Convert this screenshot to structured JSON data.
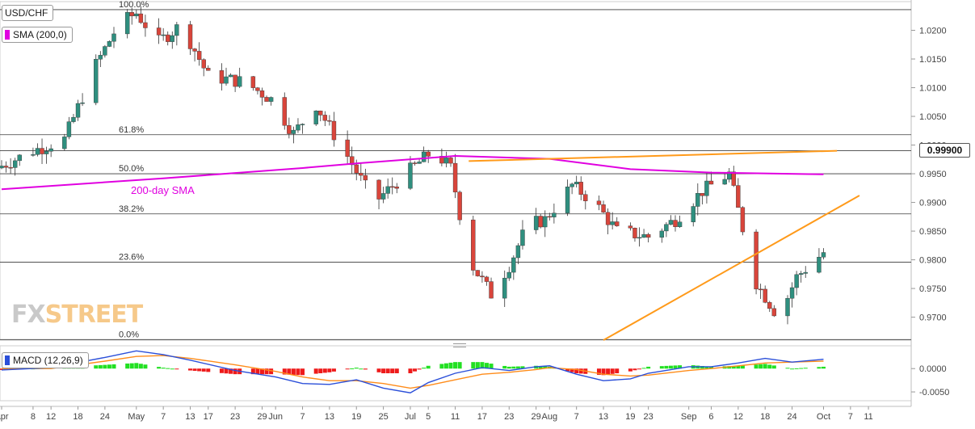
{
  "header": {
    "symbol": "USD/CHF",
    "sma_badge": "SMA (200,0)",
    "macd_badge": "MACD (12,26,9)",
    "last_price": "0.99900",
    "sma_label": "200-day SMA"
  },
  "logo": {
    "part1": "FX",
    "part2": "STREET"
  },
  "colors": {
    "up_candle": "#2f8f7f",
    "down_candle": "#d9453b",
    "sma": "#e000e0",
    "trendline": "#ff9a1a",
    "macd_line": "#2b4fd9",
    "signal_line": "#ff8c1a",
    "hist_pos": "#22e022",
    "hist_neg": "#ee1a1a",
    "grid": "#e4e4e4",
    "axis_text": "#444444"
  },
  "chart_data": [
    {
      "type": "candlestick",
      "title": "USD/CHF",
      "y_ticks": [
        "1.0200",
        "1.0150",
        "1.0100",
        "1.0050",
        "1.0000",
        "0.9950",
        "0.9900",
        "0.9850",
        "0.9800",
        "0.9750",
        "0.9700"
      ],
      "x_ticks": [
        "Apr",
        "8",
        "12",
        "18",
        "24",
        "May",
        "7",
        "13",
        "17",
        "23",
        "29",
        "Jun",
        "7",
        "13",
        "19",
        "25",
        "Jul",
        "5",
        "11",
        "17",
        "23",
        "29",
        "Aug",
        "7",
        "13",
        "19",
        "23",
        "Sep",
        "6",
        "12",
        "18",
        "24",
        "Oct",
        "7",
        "11"
      ],
      "ylim": [
        0.966,
        1.025
      ],
      "last_price": 0.999,
      "fibonacci": [
        {
          "label": "100.0%",
          "value": 1.0236
        },
        {
          "label": "61.8%",
          "value": 1.0018
        },
        {
          "label": "50.0%",
          "value": 0.995
        },
        {
          "label": "38.2%",
          "value": 0.988
        },
        {
          "label": "23.6%",
          "value": 0.9796
        },
        {
          "label": "0.0%",
          "value": 0.9661
        }
      ],
      "sma_200": [
        [
          "Apr 1",
          0.9923
        ],
        [
          "May 7",
          0.9942
        ],
        [
          "Jun 7",
          0.996
        ],
        [
          "Jun 19",
          0.9968
        ],
        [
          "Jul 11",
          0.9981
        ],
        [
          "Aug 1",
          0.9976
        ],
        [
          "Aug 19",
          0.9958
        ],
        [
          "Sep 6",
          0.9952
        ],
        [
          "Oct 1",
          0.9949
        ]
      ],
      "trendlines": [
        {
          "start": [
            "Jul 14",
            0.9972
          ],
          "end": [
            "Oct 4",
            0.999
          ]
        },
        {
          "start": [
            "Aug 13",
            0.966
          ],
          "end": [
            "Oct 9",
            0.9912
          ]
        }
      ],
      "annotations": [
        "200-day SMA"
      ]
    },
    {
      "type": "macd",
      "title": "MACD (12,26,9)",
      "y_ticks": [
        "0.0000",
        "-0.0050"
      ],
      "ylim": [
        -0.0062,
        0.0042
      ],
      "macd_line": [
        [
          "Apr 1",
          -0.0003
        ],
        [
          "Apr 12",
          0.0002
        ],
        [
          "Apr 24",
          0.0024
        ],
        [
          "May 1",
          0.0038
        ],
        [
          "May 7",
          0.003
        ],
        [
          "May 13",
          0.0018
        ],
        [
          "May 23",
          -0.0004
        ],
        [
          "Jun 1",
          -0.0018
        ],
        [
          "Jun 7",
          -0.0032
        ],
        [
          "Jun 13",
          -0.0034
        ],
        [
          "Jun 19",
          -0.0024
        ],
        [
          "Jun 25",
          -0.0042
        ],
        [
          "Jul 1",
          -0.0052
        ],
        [
          "Jul 5",
          -0.003
        ],
        [
          "Jul 11",
          -0.001
        ],
        [
          "Jul 17",
          0.0002
        ],
        [
          "Jul 23",
          -0.0004
        ],
        [
          "Jul 29",
          0.0004
        ],
        [
          "Aug 1",
          0.0006
        ],
        [
          "Aug 7",
          -0.0012
        ],
        [
          "Aug 13",
          -0.0026
        ],
        [
          "Aug 19",
          -0.0022
        ],
        [
          "Aug 23",
          -0.001
        ],
        [
          "Sep 1",
          0.0004
        ],
        [
          "Sep 6",
          0.0004
        ],
        [
          "Sep 12",
          0.0012
        ],
        [
          "Sep 18",
          0.0022
        ],
        [
          "Sep 24",
          0.0014
        ],
        [
          "Oct 1",
          0.002
        ]
      ],
      "signal_line": [
        [
          "Apr 1",
          0.0
        ],
        [
          "Apr 12",
          0.0
        ],
        [
          "Apr 24",
          0.0016
        ],
        [
          "May 1",
          0.0026
        ],
        [
          "May 7",
          0.0028
        ],
        [
          "May 13",
          0.0022
        ],
        [
          "May 23",
          0.0008
        ],
        [
          "Jun 1",
          -0.0006
        ],
        [
          "Jun 7",
          -0.0018
        ],
        [
          "Jun 13",
          -0.0026
        ],
        [
          "Jun 19",
          -0.0026
        ],
        [
          "Jun 25",
          -0.0032
        ],
        [
          "Jul 1",
          -0.0042
        ],
        [
          "Jul 5",
          -0.0036
        ],
        [
          "Jul 11",
          -0.0024
        ],
        [
          "Jul 17",
          -0.0012
        ],
        [
          "Jul 23",
          -0.0008
        ],
        [
          "Jul 29",
          -0.0002
        ],
        [
          "Aug 1",
          0.0002
        ],
        [
          "Aug 7",
          -0.0002
        ],
        [
          "Aug 13",
          -0.0012
        ],
        [
          "Aug 19",
          -0.0016
        ],
        [
          "Aug 23",
          -0.0014
        ],
        [
          "Sep 1",
          -0.0004
        ],
        [
          "Sep 6",
          0.0
        ],
        [
          "Sep 12",
          0.0006
        ],
        [
          "Sep 18",
          0.0012
        ],
        [
          "Sep 24",
          0.0014
        ],
        [
          "Oct 1",
          0.0016
        ]
      ]
    }
  ]
}
